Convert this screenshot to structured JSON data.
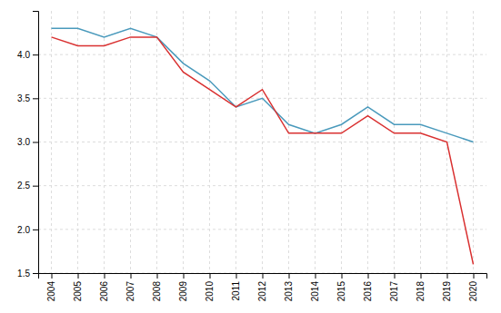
{
  "chart_data": {
    "type": "line",
    "x": [
      2004,
      2005,
      2006,
      2007,
      2008,
      2009,
      2010,
      2011,
      2012,
      2013,
      2014,
      2015,
      2016,
      2017,
      2018,
      2019,
      2020
    ],
    "series": [
      {
        "color": "#4a9abc",
        "values": [
          4.3,
          4.3,
          4.2,
          4.3,
          4.2,
          3.9,
          3.7,
          3.4,
          3.5,
          3.2,
          3.1,
          3.2,
          3.4,
          3.2,
          3.2,
          3.1,
          3.0
        ]
      },
      {
        "color": "#d93030",
        "values": [
          4.2,
          4.1,
          4.1,
          4.2,
          4.2,
          3.8,
          3.6,
          3.4,
          3.6,
          3.1,
          3.1,
          3.1,
          3.3,
          3.1,
          3.1,
          3.0,
          1.6
        ]
      }
    ],
    "xlim": [
      2003.5,
      2020.5
    ],
    "xticks": [
      2004,
      2005,
      2006,
      2007,
      2008,
      2009,
      2010,
      2011,
      2012,
      2013,
      2014,
      2015,
      2016,
      2017,
      2018,
      2019,
      2020
    ],
    "ylim": [
      1.5,
      4.5
    ],
    "yticks": [
      1.5,
      {
        "value": 2,
        "label": "2.0"
      },
      2.5,
      {
        "value": 3,
        "label": "3.0"
      },
      3.5,
      {
        "value": 4,
        "label": "4.0"
      }
    ],
    "grid": true
  }
}
